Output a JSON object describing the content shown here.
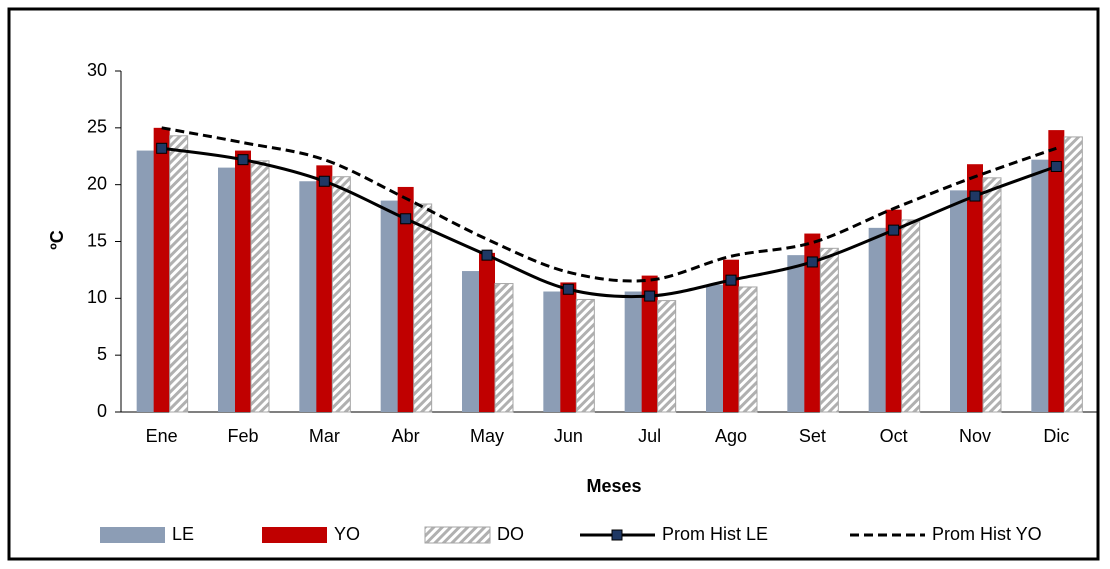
{
  "chart_data": {
    "type": "bar-line",
    "x_label": "Meses",
    "y_label": "ºC",
    "categories": [
      "Ene",
      "Feb",
      "Mar",
      "Abr",
      "May",
      "Jun",
      "Jul",
      "Ago",
      "Set",
      "Oct",
      "Nov",
      "Dic"
    ],
    "ylim": [
      0,
      30
    ],
    "yticks": [
      0,
      5,
      10,
      15,
      20,
      25,
      30
    ],
    "series": [
      {
        "name": "LE",
        "type": "bar",
        "style": "solid",
        "color": "#8c9db5",
        "values": [
          23.0,
          21.5,
          20.3,
          18.6,
          12.4,
          10.6,
          10.6,
          11.2,
          13.8,
          16.2,
          19.5,
          22.2
        ]
      },
      {
        "name": "YO",
        "type": "bar",
        "style": "solid",
        "color": "#c00000",
        "values": [
          25.0,
          23.0,
          21.7,
          19.8,
          14.0,
          11.4,
          12.0,
          13.4,
          15.7,
          17.8,
          21.8,
          24.8
        ]
      },
      {
        "name": "DO",
        "type": "bar",
        "style": "hatched",
        "color": "#a6a6a6",
        "values": [
          24.3,
          22.1,
          20.7,
          18.3,
          11.3,
          9.9,
          9.8,
          11.0,
          14.4,
          16.9,
          20.6,
          24.2
        ]
      },
      {
        "name": "Prom Hist LE",
        "type": "line",
        "style": "solid-marker",
        "color": "#000000",
        "marker_color": "#1f3864",
        "values": [
          23.2,
          22.2,
          20.3,
          17.0,
          13.8,
          10.8,
          10.2,
          11.6,
          13.2,
          16.0,
          19.0,
          21.6
        ]
      },
      {
        "name": "Prom Hist YO",
        "type": "line",
        "style": "dashed",
        "color": "#000000",
        "values": [
          25.0,
          23.7,
          22.2,
          18.8,
          15.2,
          12.3,
          11.6,
          13.7,
          14.9,
          17.9,
          20.7,
          23.2
        ]
      }
    ]
  }
}
